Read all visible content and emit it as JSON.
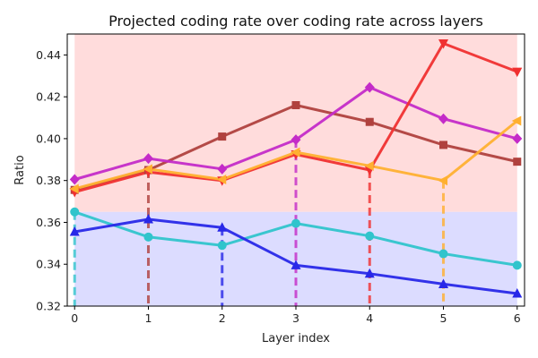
{
  "chart_data": {
    "type": "line",
    "title": "Projected coding rate over coding rate across layers",
    "xlabel": "Layer index",
    "ylabel": "Ratio",
    "x": [
      0,
      1,
      2,
      3,
      4,
      5,
      6
    ],
    "xlim": [
      -0.1,
      6.1
    ],
    "ylim": [
      0.32,
      0.45
    ],
    "xticks": [
      "0",
      "1",
      "2",
      "3",
      "4",
      "5",
      "6"
    ],
    "yticks": [
      "0.32",
      "0.34",
      "0.36",
      "0.38",
      "0.40",
      "0.42",
      "0.44"
    ],
    "ytick_values": [
      0.32,
      0.34,
      0.36,
      0.38,
      0.4,
      0.42,
      0.44
    ],
    "bands": [
      {
        "name": "upper-band",
        "y0": 0.365,
        "y1": 0.45,
        "color": "#ffdcdc"
      },
      {
        "name": "lower-band",
        "y0": 0.32,
        "y1": 0.365,
        "color": "#dcdcff"
      }
    ],
    "series": [
      {
        "name": "brown-square",
        "color": "#b0413e",
        "marker": "square",
        "values": [
          0.3755,
          0.385,
          0.401,
          0.416,
          0.408,
          0.397,
          0.389
        ]
      },
      {
        "name": "magenta-diamond",
        "color": "#c42bc8",
        "marker": "diamond",
        "values": [
          0.3805,
          0.3905,
          0.3855,
          0.3995,
          0.4245,
          0.4095,
          0.4
        ]
      },
      {
        "name": "red-down-triangle",
        "color": "#f03030",
        "marker": "tri-down",
        "values": [
          0.3745,
          0.384,
          0.38,
          0.3925,
          0.385,
          0.4455,
          0.432
        ]
      },
      {
        "name": "orange-left-triangle",
        "color": "#ffb030",
        "marker": "tri-left",
        "values": [
          0.376,
          0.3855,
          0.3805,
          0.3935,
          0.387,
          0.38,
          0.4085
        ]
      },
      {
        "name": "cyan-circle",
        "color": "#30c4cc",
        "marker": "circle",
        "values": [
          0.365,
          0.353,
          0.349,
          0.3595,
          0.3535,
          0.345,
          0.3395
        ]
      },
      {
        "name": "blue-up-triangle",
        "color": "#2828e8",
        "marker": "tri-up",
        "values": [
          0.3555,
          0.3615,
          0.3575,
          0.3395,
          0.3355,
          0.3305,
          0.326
        ]
      }
    ],
    "drop_lines": [
      {
        "x": 0,
        "series": "cyan-circle"
      },
      {
        "x": 1,
        "series": "brown-square"
      },
      {
        "x": 2,
        "series": "blue-up-triangle"
      },
      {
        "x": 3,
        "series": "magenta-diamond"
      },
      {
        "x": 4,
        "series": "red-down-triangle"
      },
      {
        "x": 5,
        "series": "orange-left-triangle"
      }
    ]
  }
}
